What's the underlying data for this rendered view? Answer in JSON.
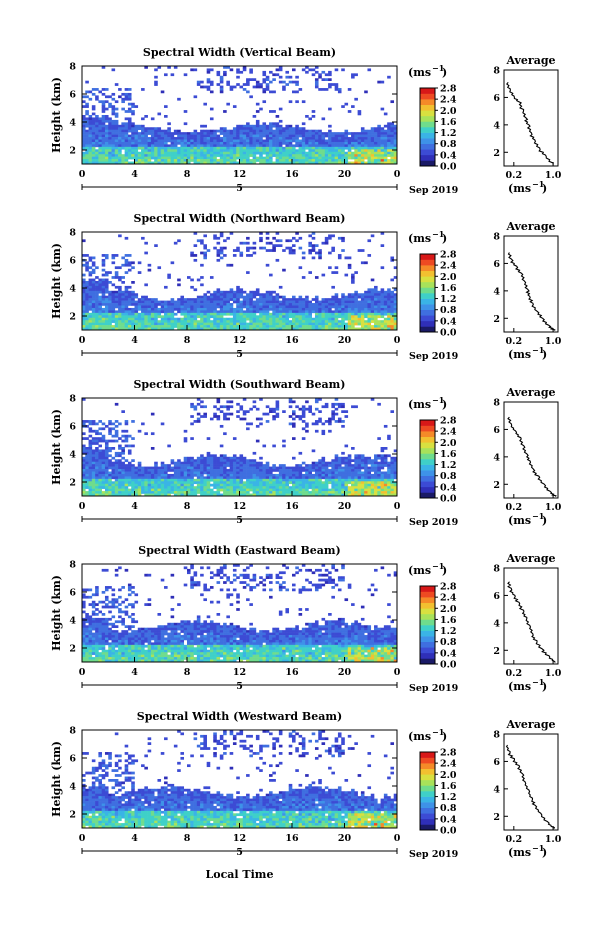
{
  "colors": {
    "scale": [
      "#1a1a66",
      "#2f2fb8",
      "#3c4bd4",
      "#3f6fe0",
      "#3e92e8",
      "#3ab4e6",
      "#3fd0c8",
      "#6fdc8c",
      "#a8e25a",
      "#d8e040",
      "#f2c030",
      "#f58a28",
      "#ee4a22",
      "#d81818"
    ],
    "null": "#ffffff",
    "ink": "#000000"
  },
  "figure": {
    "xaxis_label": "Local Time",
    "date_label": "Sep 2019",
    "day_label": "5",
    "colorbar_unit": "(ms",
    "colorbar_unit_exp": "−1",
    "colorbar_unit_close": ")",
    "profile_unit": "(ms",
    "profile_unit_exp": "−1",
    "profile_unit_close": ")",
    "profile_title": "Average"
  },
  "chart_data": [
    {
      "type": "heatmap",
      "title": "Spectral Width (Vertical Beam)",
      "xlabel": "",
      "ylabel": "Height (km)",
      "x_ticks": [
        "0",
        "4",
        "8",
        "12",
        "16",
        "20",
        "0"
      ],
      "y_ticks": [
        "2",
        "4",
        "6",
        "8"
      ],
      "xlim": [
        0,
        24
      ],
      "ylim": [
        1,
        8
      ],
      "colorbar": {
        "ticks": [
          "0.0",
          "0.4",
          "0.8",
          "1.2",
          "1.6",
          "2.0",
          "2.4",
          "2.8"
        ],
        "range": [
          0.0,
          2.8
        ]
      },
      "profile": {
        "title": "Average",
        "xlabel": "(ms−1)",
        "x_ticks": [
          "0.2",
          "1.0"
        ],
        "y_ticks": [
          "2",
          "4",
          "6",
          "8"
        ],
        "xlim": [
          0,
          1.1
        ],
        "ylim": [
          1,
          8
        ],
        "points": [
          [
            0.07,
            7.1
          ],
          [
            0.12,
            6.5
          ],
          [
            0.2,
            6.0
          ],
          [
            0.32,
            5.6
          ],
          [
            0.38,
            5.0
          ],
          [
            0.45,
            4.4
          ],
          [
            0.5,
            3.9
          ],
          [
            0.55,
            3.3
          ],
          [
            0.62,
            2.8
          ],
          [
            0.72,
            2.2
          ],
          [
            0.85,
            1.7
          ],
          [
            1.0,
            1.1
          ]
        ]
      }
    },
    {
      "type": "heatmap",
      "title": "Spectral Width (Northward Beam)",
      "xlabel": "",
      "ylabel": "Height (km)",
      "x_ticks": [
        "0",
        "4",
        "8",
        "12",
        "16",
        "20",
        "0"
      ],
      "y_ticks": [
        "2",
        "4",
        "6",
        "8"
      ],
      "xlim": [
        0,
        24
      ],
      "ylim": [
        1,
        8
      ],
      "colorbar": {
        "ticks": [
          "0.0",
          "0.4",
          "0.8",
          "1.2",
          "1.6",
          "2.0",
          "2.4",
          "2.8"
        ],
        "range": [
          0.0,
          2.8
        ]
      },
      "profile": {
        "title": "Average",
        "xlabel": "(ms−1)",
        "x_ticks": [
          "0.2",
          "1.0"
        ],
        "y_ticks": [
          "2",
          "4",
          "6",
          "8"
        ],
        "xlim": [
          0,
          1.1
        ],
        "ylim": [
          1,
          8
        ],
        "points": [
          [
            0.1,
            6.8
          ],
          [
            0.15,
            6.2
          ],
          [
            0.25,
            5.7
          ],
          [
            0.35,
            5.2
          ],
          [
            0.42,
            4.6
          ],
          [
            0.48,
            4.0
          ],
          [
            0.52,
            3.5
          ],
          [
            0.58,
            3.0
          ],
          [
            0.68,
            2.4
          ],
          [
            0.8,
            1.9
          ],
          [
            0.92,
            1.4
          ],
          [
            1.03,
            1.1
          ]
        ]
      }
    },
    {
      "type": "heatmap",
      "title": "Spectral Width (Southward Beam)",
      "xlabel": "",
      "ylabel": "Height (km)",
      "x_ticks": [
        "0",
        "4",
        "8",
        "12",
        "16",
        "20",
        "0"
      ],
      "y_ticks": [
        "2",
        "4",
        "6",
        "8"
      ],
      "xlim": [
        0,
        24
      ],
      "ylim": [
        1,
        8
      ],
      "colorbar": {
        "ticks": [
          "0.0",
          "0.4",
          "0.8",
          "1.2",
          "1.6",
          "2.0",
          "2.4",
          "2.8"
        ],
        "range": [
          0.0,
          2.8
        ]
      },
      "profile": {
        "title": "Average",
        "xlabel": "(ms−1)",
        "x_ticks": [
          "0.2",
          "1.0"
        ],
        "y_ticks": [
          "2",
          "4",
          "6",
          "8"
        ],
        "xlim": [
          0,
          1.1
        ],
        "ylim": [
          1,
          8
        ],
        "points": [
          [
            0.08,
            6.9
          ],
          [
            0.14,
            6.3
          ],
          [
            0.24,
            5.8
          ],
          [
            0.33,
            5.3
          ],
          [
            0.4,
            4.7
          ],
          [
            0.47,
            4.1
          ],
          [
            0.53,
            3.6
          ],
          [
            0.6,
            3.0
          ],
          [
            0.7,
            2.5
          ],
          [
            0.82,
            1.9
          ],
          [
            0.95,
            1.4
          ],
          [
            1.05,
            1.1
          ]
        ]
      }
    },
    {
      "type": "heatmap",
      "title": "Spectral Width (Eastward Beam)",
      "xlabel": "",
      "ylabel": "Height (km)",
      "x_ticks": [
        "0",
        "4",
        "8",
        "12",
        "16",
        "20",
        "0"
      ],
      "y_ticks": [
        "2",
        "4",
        "6",
        "8"
      ],
      "xlim": [
        0,
        24
      ],
      "ylim": [
        1,
        8
      ],
      "colorbar": {
        "ticks": [
          "0.0",
          "0.4",
          "0.8",
          "1.2",
          "1.6",
          "2.0",
          "2.4",
          "2.8"
        ],
        "range": [
          0.0,
          2.8
        ]
      },
      "profile": {
        "title": "Average",
        "xlabel": "(ms−1)",
        "x_ticks": [
          "0.2",
          "1.0"
        ],
        "y_ticks": [
          "2",
          "4",
          "6",
          "8"
        ],
        "xlim": [
          0,
          1.1
        ],
        "ylim": [
          1,
          8
        ],
        "points": [
          [
            0.09,
            7.0
          ],
          [
            0.13,
            6.4
          ],
          [
            0.22,
            5.9
          ],
          [
            0.3,
            5.4
          ],
          [
            0.39,
            4.8
          ],
          [
            0.45,
            4.3
          ],
          [
            0.52,
            3.7
          ],
          [
            0.58,
            3.1
          ],
          [
            0.66,
            2.6
          ],
          [
            0.78,
            2.0
          ],
          [
            0.92,
            1.5
          ],
          [
            1.04,
            1.1
          ]
        ]
      }
    },
    {
      "type": "heatmap",
      "title": "Spectral Width (Westward Beam)",
      "xlabel": "Local Time",
      "ylabel": "Height (km)",
      "x_ticks": [
        "0",
        "4",
        "8",
        "12",
        "16",
        "20",
        "0"
      ],
      "y_ticks": [
        "2",
        "4",
        "6",
        "8"
      ],
      "xlim": [
        0,
        24
      ],
      "ylim": [
        1,
        8
      ],
      "colorbar": {
        "ticks": [
          "0.0",
          "0.4",
          "0.8",
          "1.2",
          "1.6",
          "2.0",
          "2.4",
          "2.8"
        ],
        "range": [
          0.0,
          2.8
        ]
      },
      "profile": {
        "title": "Average",
        "xlabel": "(ms−1)",
        "x_ticks": [
          "0.2",
          "1.0"
        ],
        "y_ticks": [
          "2",
          "4",
          "6",
          "8"
        ],
        "xlim": [
          0,
          1.1
        ],
        "ylim": [
          1,
          8
        ],
        "points": [
          [
            0.06,
            7.2
          ],
          [
            0.1,
            6.6
          ],
          [
            0.2,
            6.1
          ],
          [
            0.3,
            5.6
          ],
          [
            0.37,
            5.0
          ],
          [
            0.43,
            4.4
          ],
          [
            0.5,
            3.8
          ],
          [
            0.56,
            3.2
          ],
          [
            0.64,
            2.7
          ],
          [
            0.76,
            2.1
          ],
          [
            0.9,
            1.5
          ],
          [
            1.02,
            1.1
          ]
        ]
      }
    }
  ]
}
